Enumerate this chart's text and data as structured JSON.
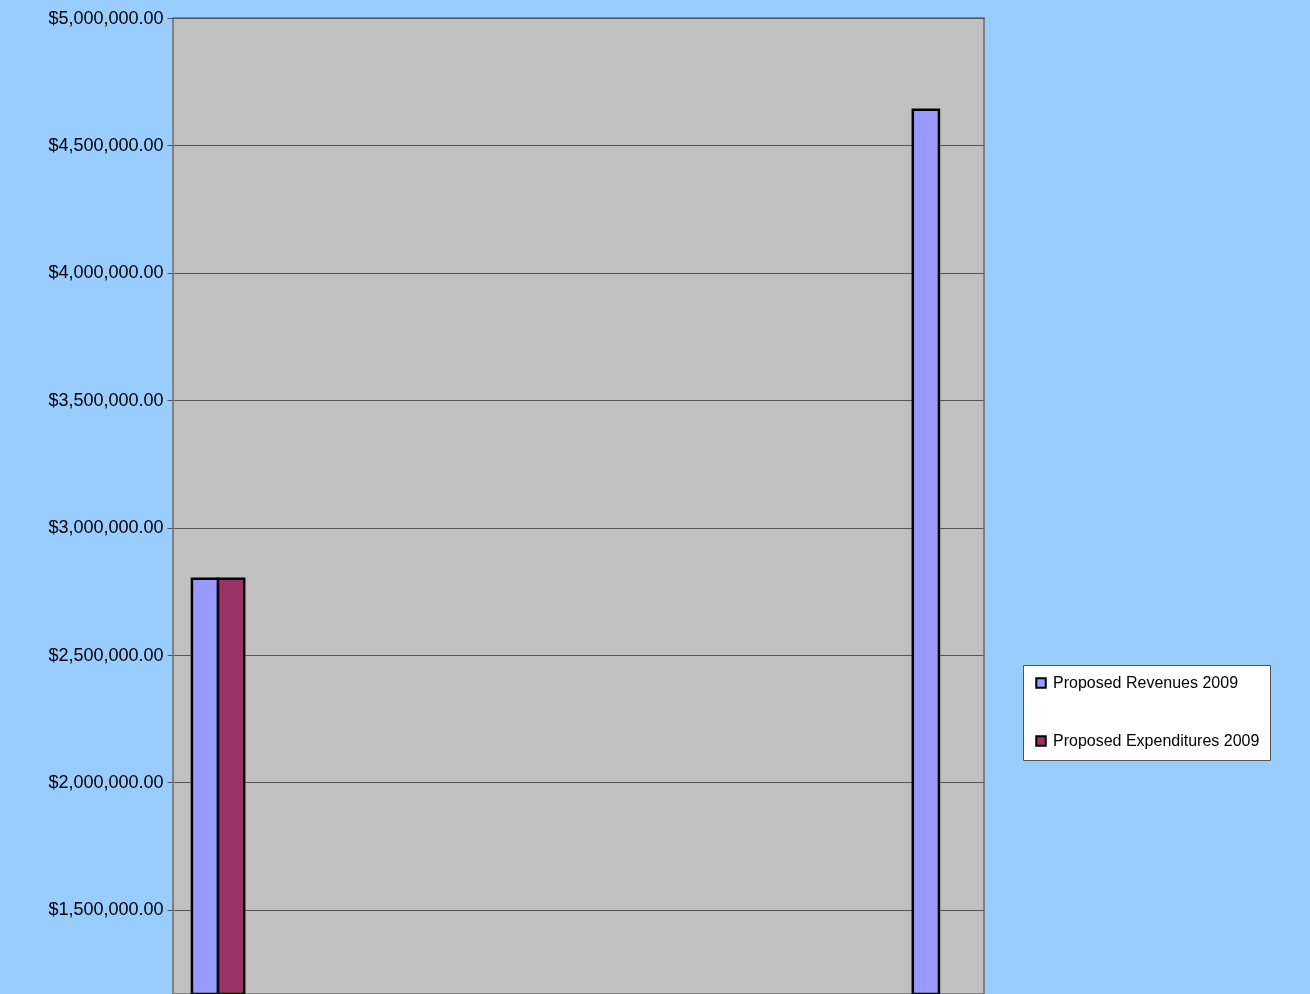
{
  "chart_data": {
    "type": "bar",
    "categories": [
      null,
      null,
      null,
      null,
      null,
      null,
      null,
      null,
      null
    ],
    "series": [
      {
        "name": "Proposed Revenues 2009",
        "color": "#9999ff",
        "values": [
          2800000,
          null,
          null,
          null,
          null,
          null,
          null,
          null,
          4640000
        ]
      },
      {
        "name": "Proposed Expenditures 2009",
        "color": "#993366",
        "values": [
          2800000,
          null,
          null,
          null,
          null,
          null,
          null,
          null,
          null
        ]
      }
    ],
    "ylim": [
      1170000,
      5000000
    ],
    "yticks": [
      {
        "value": 1500000,
        "label": "$1,500,000.00"
      },
      {
        "value": 2000000,
        "label": "$2,000,000.00"
      },
      {
        "value": 2500000,
        "label": "$2,500,000.00"
      },
      {
        "value": 3000000,
        "label": "$3,000,000.00"
      },
      {
        "value": 3500000,
        "label": "$3,500,000.00"
      },
      {
        "value": 4000000,
        "label": "$4,000,000.00"
      },
      {
        "value": 4500000,
        "label": "$4,500,000.00"
      },
      {
        "value": 5000000,
        "label": "$5,000,000.00"
      }
    ],
    "grid": "y",
    "legend": "right"
  }
}
